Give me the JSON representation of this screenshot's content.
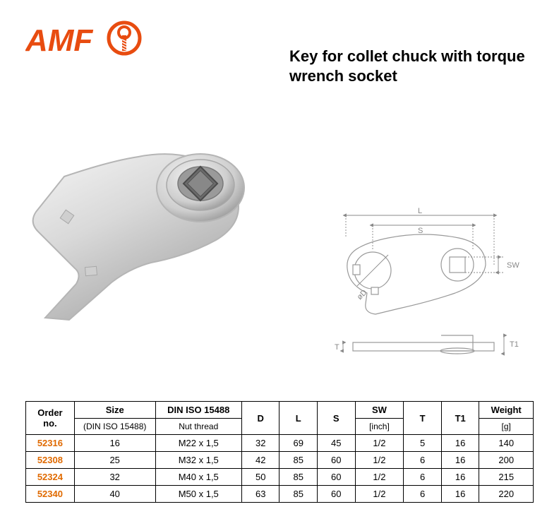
{
  "logo": {
    "text": "AMF",
    "text_color": "#e84c10",
    "ring_color": "#e84c10",
    "screw_color": "#e84c10"
  },
  "title": "Key for collet chuck with torque wrench socket",
  "table": {
    "columns": [
      {
        "label": "Order no.",
        "sub": "",
        "width": "9%"
      },
      {
        "label": "Size",
        "sub": "(DIN ISO 15488)",
        "width": "15%"
      },
      {
        "label": "DIN ISO 15488",
        "sub": "Nut thread",
        "width": "16%"
      },
      {
        "label": "D",
        "sub": "",
        "width": "7%"
      },
      {
        "label": "L",
        "sub": "",
        "width": "7%"
      },
      {
        "label": "S",
        "sub": "",
        "width": "7%"
      },
      {
        "label": "SW",
        "sub": "[inch]",
        "width": "9%"
      },
      {
        "label": "T",
        "sub": "",
        "width": "7%"
      },
      {
        "label": "T1",
        "sub": "",
        "width": "7%"
      },
      {
        "label": "Weight",
        "sub": "[g]",
        "width": "10%"
      }
    ],
    "rows": [
      [
        "52316",
        "16",
        "M22 x 1,5",
        "32",
        "69",
        "45",
        "1/2",
        "5",
        "16",
        "140"
      ],
      [
        "52308",
        "25",
        "M32 x 1,5",
        "42",
        "85",
        "60",
        "1/2",
        "6",
        "16",
        "200"
      ],
      [
        "52324",
        "32",
        "M40 x 1,5",
        "50",
        "85",
        "60",
        "1/2",
        "6",
        "16",
        "215"
      ],
      [
        "52340",
        "40",
        "M50 x 1,5",
        "63",
        "85",
        "60",
        "1/2",
        "6",
        "16",
        "220"
      ]
    ],
    "cell_bg": "#ffffff",
    "orderno_color": "#e06a00",
    "font_size": 13,
    "border_color": "#000000"
  },
  "diagram": {
    "labels": {
      "L": "L",
      "S": "S",
      "D": "øD",
      "SW": "SW",
      "T": "T",
      "T1": "T1"
    },
    "line_color": "#999999",
    "dim_color": "#888888"
  },
  "photo": {
    "body_fill": "#d9d9d9",
    "body_stroke": "#b5b5b5",
    "highlight": "#f4f4f4",
    "shadow": "#a8a8a8",
    "socket_outer": "#cfcfcf",
    "socket_inner": "#7a7a7a"
  }
}
